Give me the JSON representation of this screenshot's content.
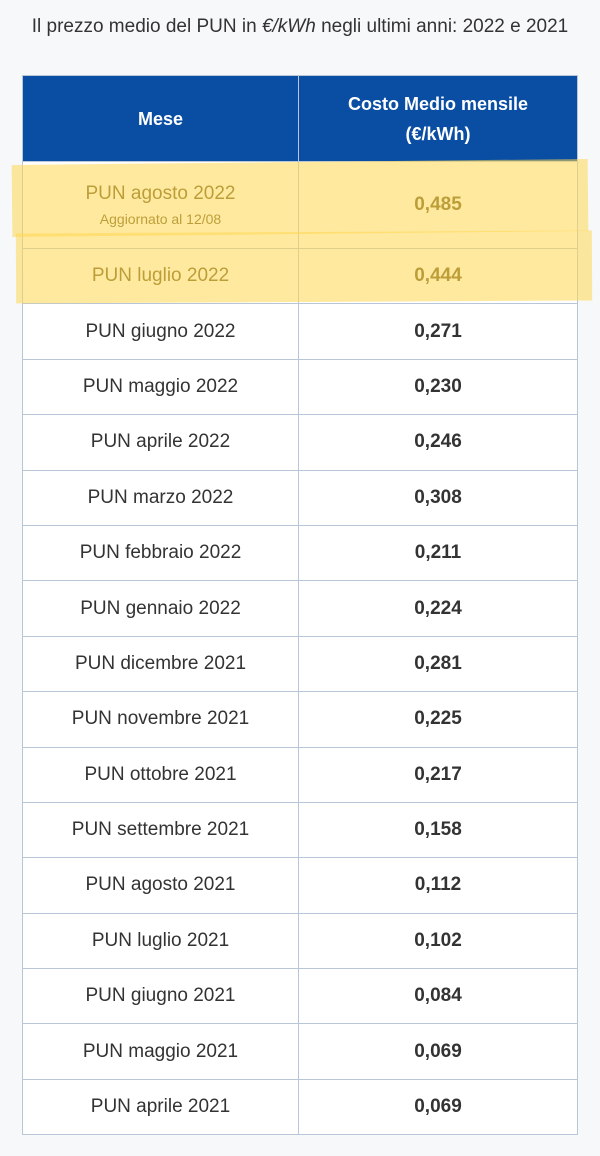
{
  "caption": {
    "before": "Il prezzo medio del PUN in ",
    "unit": "€/kWh",
    "after": " negli ultimi anni: 2022 e 2021"
  },
  "table": {
    "headers": [
      "Mese",
      "Costo Medio mensile (€/kWh)"
    ],
    "rows": [
      {
        "month": "PUN agosto 2022",
        "note": "Aggiornato al 12/08",
        "value": "0,485",
        "highlighted": true
      },
      {
        "month": "PUN luglio 2022",
        "value": "0,444",
        "highlighted": true
      },
      {
        "month": "PUN giugno 2022",
        "value": "0,271"
      },
      {
        "month": "PUN maggio 2022",
        "value": "0,230"
      },
      {
        "month": "PUN aprile 2022",
        "value": "0,246"
      },
      {
        "month": "PUN marzo 2022",
        "value": "0,308"
      },
      {
        "month": "PUN febbraio 2022",
        "value": "0,211"
      },
      {
        "month": "PUN gennaio 2022",
        "value": "0,224"
      },
      {
        "month": "PUN dicembre 2021",
        "value": "0,281"
      },
      {
        "month": "PUN novembre 2021",
        "value": "0,225"
      },
      {
        "month": "PUN ottobre 2021",
        "value": "0,217"
      },
      {
        "month": "PUN settembre 2021",
        "value": "0,158"
      },
      {
        "month": "PUN agosto 2021",
        "value": "0,112"
      },
      {
        "month": "PUN luglio 2021",
        "value": "0,102"
      },
      {
        "month": "PUN giugno 2021",
        "value": "0,084"
      },
      {
        "month": "PUN maggio 2021",
        "value": "0,069"
      },
      {
        "month": "PUN aprile 2021",
        "value": "0,069"
      }
    ]
  },
  "colors": {
    "header_bg": "#0a4ea3",
    "highlight": "#ffd750"
  }
}
